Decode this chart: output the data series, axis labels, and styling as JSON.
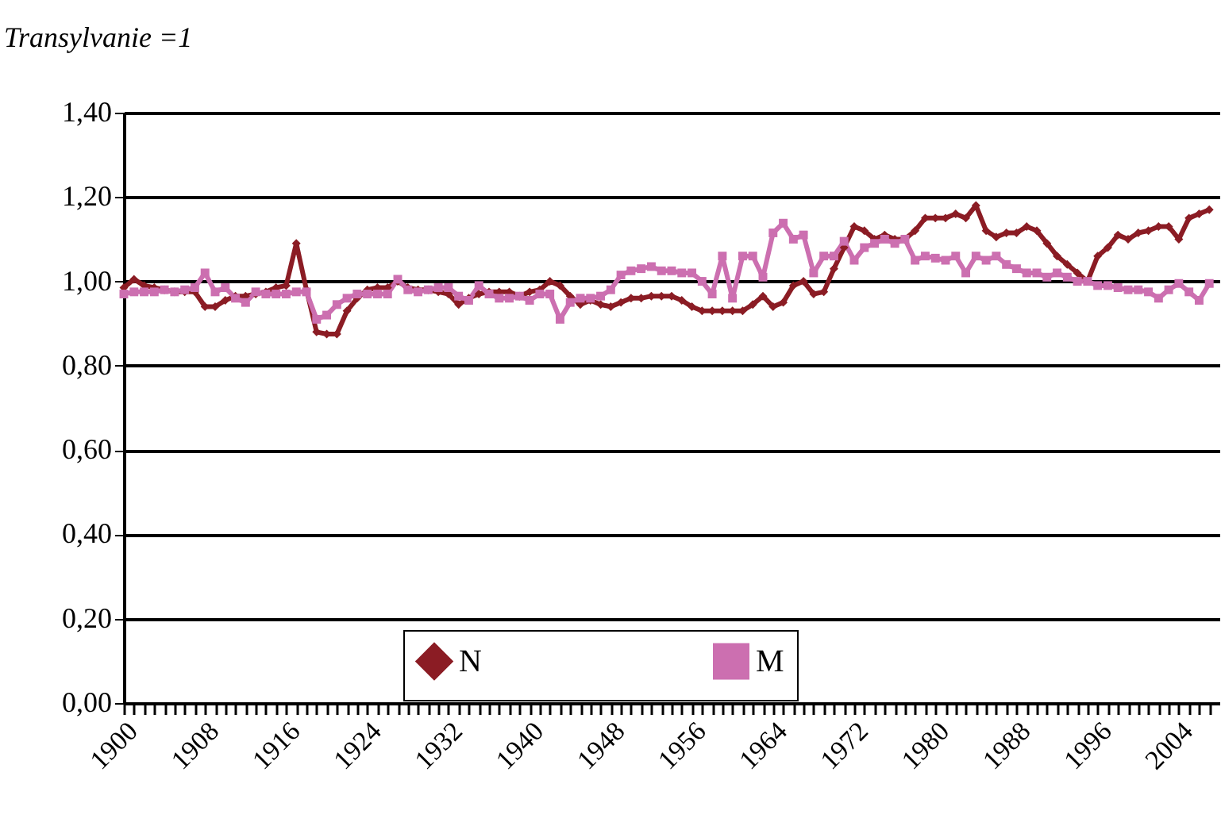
{
  "chart_data": {
    "type": "line",
    "ylabel": "Transylvanie =1",
    "x": [
      1900,
      1901,
      1902,
      1903,
      1904,
      1905,
      1906,
      1907,
      1908,
      1909,
      1910,
      1911,
      1912,
      1913,
      1914,
      1915,
      1916,
      1917,
      1918,
      1919,
      1920,
      1921,
      1922,
      1923,
      1924,
      1925,
      1926,
      1927,
      1928,
      1929,
      1930,
      1931,
      1932,
      1933,
      1934,
      1935,
      1936,
      1937,
      1938,
      1939,
      1940,
      1941,
      1942,
      1943,
      1944,
      1945,
      1946,
      1947,
      1948,
      1949,
      1950,
      1951,
      1952,
      1953,
      1954,
      1955,
      1956,
      1957,
      1958,
      1959,
      1960,
      1961,
      1962,
      1963,
      1964,
      1965,
      1966,
      1967,
      1968,
      1969,
      1970,
      1971,
      1972,
      1973,
      1974,
      1975,
      1976,
      1977,
      1978,
      1979,
      1980,
      1981,
      1982,
      1983,
      1984,
      1985,
      1986,
      1987,
      1988,
      1989,
      1990,
      1991,
      1992,
      1993,
      1994,
      1995,
      1996,
      1997,
      1998,
      1999,
      2000,
      2001,
      2002,
      2003,
      2004,
      2005,
      2006,
      2007
    ],
    "series": [
      {
        "name": "N",
        "color": "#8b1c24",
        "marker": "diamond",
        "values": [
          0.985,
          1.005,
          0.99,
          0.985,
          0.98,
          0.975,
          0.975,
          0.975,
          0.94,
          0.94,
          0.955,
          0.965,
          0.965,
          0.97,
          0.975,
          0.985,
          0.99,
          1.09,
          0.98,
          0.88,
          0.875,
          0.875,
          0.93,
          0.96,
          0.98,
          0.985,
          0.985,
          1.0,
          0.985,
          0.98,
          0.98,
          0.975,
          0.97,
          0.945,
          0.96,
          0.97,
          0.975,
          0.975,
          0.975,
          0.965,
          0.975,
          0.98,
          1.0,
          0.99,
          0.965,
          0.945,
          0.955,
          0.945,
          0.94,
          0.95,
          0.96,
          0.96,
          0.965,
          0.965,
          0.965,
          0.955,
          0.94,
          0.93,
          0.93,
          0.93,
          0.93,
          0.93,
          0.945,
          0.965,
          0.94,
          0.95,
          0.99,
          1.0,
          0.97,
          0.975,
          1.03,
          1.08,
          1.13,
          1.12,
          1.1,
          1.11,
          1.1,
          1.1,
          1.12,
          1.15,
          1.15,
          1.15,
          1.16,
          1.15,
          1.18,
          1.12,
          1.105,
          1.115,
          1.115,
          1.13,
          1.12,
          1.09,
          1.06,
          1.04,
          1.02,
          1.0,
          1.06,
          1.08,
          1.11,
          1.1,
          1.115,
          1.12,
          1.13,
          1.13,
          1.1,
          1.15,
          1.16,
          1.17
        ]
      },
      {
        "name": "M",
        "color": "#cc6fb0",
        "marker": "square",
        "values": [
          0.97,
          0.975,
          0.975,
          0.975,
          0.98,
          0.975,
          0.98,
          0.985,
          1.02,
          0.975,
          0.985,
          0.96,
          0.95,
          0.975,
          0.97,
          0.97,
          0.97,
          0.975,
          0.975,
          0.91,
          0.92,
          0.945,
          0.96,
          0.97,
          0.97,
          0.97,
          0.97,
          1.005,
          0.98,
          0.975,
          0.98,
          0.985,
          0.985,
          0.965,
          0.955,
          0.99,
          0.97,
          0.96,
          0.96,
          0.965,
          0.955,
          0.97,
          0.97,
          0.91,
          0.95,
          0.96,
          0.96,
          0.965,
          0.98,
          1.015,
          1.025,
          1.03,
          1.035,
          1.025,
          1.025,
          1.02,
          1.02,
          1.0,
          0.97,
          1.06,
          0.96,
          1.06,
          1.06,
          1.01,
          1.115,
          1.138,
          1.1,
          1.11,
          1.02,
          1.06,
          1.06,
          1.095,
          1.05,
          1.08,
          1.09,
          1.1,
          1.09,
          1.1,
          1.05,
          1.06,
          1.055,
          1.05,
          1.06,
          1.02,
          1.06,
          1.05,
          1.06,
          1.04,
          1.03,
          1.02,
          1.02,
          1.01,
          1.02,
          1.01,
          1.0,
          1.0,
          0.99,
          0.99,
          0.985,
          0.98,
          0.98,
          0.975,
          0.96,
          0.98,
          0.995,
          0.975,
          0.955,
          0.995
        ]
      }
    ],
    "xlim": [
      1900,
      2008
    ],
    "xticks": [
      1900,
      {
        "value": 1901,
        "label": null
      },
      {
        "value": 1902,
        "label": null
      },
      {
        "value": 1903,
        "label": null
      },
      {
        "value": 1904,
        "label": null
      },
      {
        "value": 1905,
        "label": null
      },
      {
        "value": 1906,
        "label": null
      },
      {
        "value": 1907,
        "label": null
      },
      1908,
      {
        "value": 1909,
        "label": null
      },
      {
        "value": 1910,
        "label": null
      },
      {
        "value": 1911,
        "label": null
      },
      {
        "value": 1912,
        "label": null
      },
      {
        "value": 1913,
        "label": null
      },
      {
        "value": 1914,
        "label": null
      },
      {
        "value": 1915,
        "label": null
      },
      1916,
      {
        "value": 1917,
        "label": null
      },
      {
        "value": 1918,
        "label": null
      },
      {
        "value": 1919,
        "label": null
      },
      {
        "value": 1920,
        "label": null
      },
      {
        "value": 1921,
        "label": null
      },
      {
        "value": 1922,
        "label": null
      },
      {
        "value": 1923,
        "label": null
      },
      1924,
      {
        "value": 1925,
        "label": null
      },
      {
        "value": 1926,
        "label": null
      },
      {
        "value": 1927,
        "label": null
      },
      {
        "value": 1928,
        "label": null
      },
      {
        "value": 1929,
        "label": null
      },
      {
        "value": 1930,
        "label": null
      },
      {
        "value": 1931,
        "label": null
      },
      1932,
      {
        "value": 1933,
        "label": null
      },
      {
        "value": 1934,
        "label": null
      },
      {
        "value": 1935,
        "label": null
      },
      {
        "value": 1936,
        "label": null
      },
      {
        "value": 1937,
        "label": null
      },
      {
        "value": 1938,
        "label": null
      },
      {
        "value": 1939,
        "label": null
      },
      1940,
      {
        "value": 1941,
        "label": null
      },
      {
        "value": 1942,
        "label": null
      },
      {
        "value": 1943,
        "label": null
      },
      {
        "value": 1944,
        "label": null
      },
      {
        "value": 1945,
        "label": null
      },
      {
        "value": 1946,
        "label": null
      },
      {
        "value": 1947,
        "label": null
      },
      1948,
      {
        "value": 1949,
        "label": null
      },
      {
        "value": 1950,
        "label": null
      },
      {
        "value": 1951,
        "label": null
      },
      {
        "value": 1952,
        "label": null
      },
      {
        "value": 1953,
        "label": null
      },
      {
        "value": 1954,
        "label": null
      },
      {
        "value": 1955,
        "label": null
      },
      1956,
      {
        "value": 1957,
        "label": null
      },
      {
        "value": 1958,
        "label": null
      },
      {
        "value": 1959,
        "label": null
      },
      {
        "value": 1960,
        "label": null
      },
      {
        "value": 1961,
        "label": null
      },
      {
        "value": 1962,
        "label": null
      },
      {
        "value": 1963,
        "label": null
      },
      1964,
      {
        "value": 1965,
        "label": null
      },
      {
        "value": 1966,
        "label": null
      },
      {
        "value": 1967,
        "label": null
      },
      {
        "value": 1968,
        "label": null
      },
      {
        "value": 1969,
        "label": null
      },
      {
        "value": 1970,
        "label": null
      },
      {
        "value": 1971,
        "label": null
      },
      1972,
      {
        "value": 1973,
        "label": null
      },
      {
        "value": 1974,
        "label": null
      },
      {
        "value": 1975,
        "label": null
      },
      {
        "value": 1976,
        "label": null
      },
      {
        "value": 1977,
        "label": null
      },
      {
        "value": 1978,
        "label": null
      },
      {
        "value": 1979,
        "label": null
      },
      1980,
      {
        "value": 1981,
        "label": null
      },
      {
        "value": 1982,
        "label": null
      },
      {
        "value": 1983,
        "label": null
      },
      {
        "value": 1984,
        "label": null
      },
      {
        "value": 1985,
        "label": null
      },
      {
        "value": 1986,
        "label": null
      },
      {
        "value": 1987,
        "label": null
      },
      1988,
      {
        "value": 1989,
        "label": null
      },
      {
        "value": 1990,
        "label": null
      },
      {
        "value": 1991,
        "label": null
      },
      {
        "value": 1992,
        "label": null
      },
      {
        "value": 1993,
        "label": null
      },
      {
        "value": 1994,
        "label": null
      },
      {
        "value": 1995,
        "label": null
      },
      1996,
      {
        "value": 1997,
        "label": null
      },
      {
        "value": 1998,
        "label": null
      },
      {
        "value": 1999,
        "label": null
      },
      {
        "value": 2000,
        "label": null
      },
      {
        "value": 2001,
        "label": null
      },
      {
        "value": 2002,
        "label": null
      },
      {
        "value": 2003,
        "label": null
      },
      2004,
      {
        "value": 2005,
        "label": null
      },
      {
        "value": 2006,
        "label": null
      },
      {
        "value": 2007,
        "label": null
      }
    ],
    "ylim": [
      0,
      1.4
    ],
    "yticks": [
      {
        "value": 0,
        "label": "0,00"
      },
      {
        "value": 0.2,
        "label": "0,20"
      },
      {
        "value": 0.4,
        "label": "0,40"
      },
      {
        "value": 0.6,
        "label": "0,60"
      },
      {
        "value": 0.8,
        "label": "0,80"
      },
      {
        "value": 1.0,
        "label": "1,00"
      },
      {
        "value": 1.2,
        "label": "1,20"
      },
      {
        "value": 1.4,
        "label": "1,40"
      }
    ],
    "grid": "y",
    "legend": "bottom",
    "line_style": "solid"
  }
}
